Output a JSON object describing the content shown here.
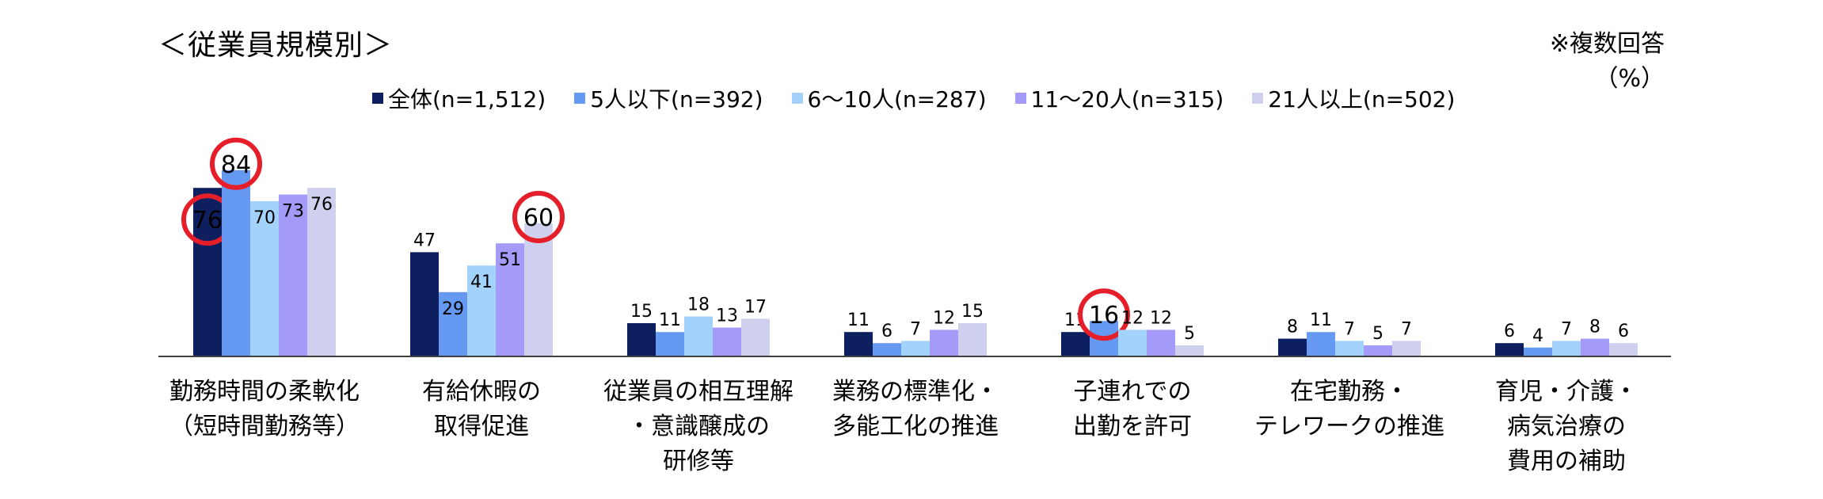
{
  "page": {
    "title": "＜従業員規模別＞",
    "note_line1": "※複数回答",
    "note_line2": "（%）"
  },
  "colors": {
    "series": [
      "#0d1f5e",
      "#6699f2",
      "#a3d3fc",
      "#a39bf7",
      "#cfd0ee"
    ],
    "highlight": "#e61e2a",
    "axis": "#404040"
  },
  "chart_data": {
    "type": "bar",
    "title": "＜従業員規模別＞",
    "ylabel": "（%）",
    "ylim": [
      0,
      100
    ],
    "grid": false,
    "legend_position": "top",
    "categories": [
      "勤務時間の柔軟化\n（短時間勤務等）",
      "有給休暇の\n取得促進",
      "従業員の相互理解\n・意識醸成の\n研修等",
      "業務の標準化・\n多能工化の推進",
      "子連れでの\n出勤を許可",
      "在宅勤務・\nテレワークの推進",
      "育児・介護・\n病気治療の\n費用の補助"
    ],
    "series": [
      {
        "name": "全体(n=1,512)",
        "values": [
          76,
          47,
          15,
          11,
          11,
          8,
          6
        ]
      },
      {
        "name": "5人以下(n=392)",
        "values": [
          84,
          29,
          11,
          6,
          16,
          11,
          4
        ]
      },
      {
        "name": "6～10人(n=287)",
        "values": [
          70,
          41,
          18,
          7,
          12,
          7,
          7
        ]
      },
      {
        "name": "11～20人(n=315)",
        "values": [
          73,
          51,
          13,
          12,
          12,
          5,
          8
        ]
      },
      {
        "name": "21人以上(n=502)",
        "values": [
          76,
          60,
          17,
          15,
          5,
          7,
          6
        ]
      }
    ],
    "highlighted": [
      {
        "category_index": 0,
        "series_index": 0
      },
      {
        "category_index": 0,
        "series_index": 1
      },
      {
        "category_index": 1,
        "series_index": 4
      },
      {
        "category_index": 4,
        "series_index": 1
      }
    ]
  }
}
